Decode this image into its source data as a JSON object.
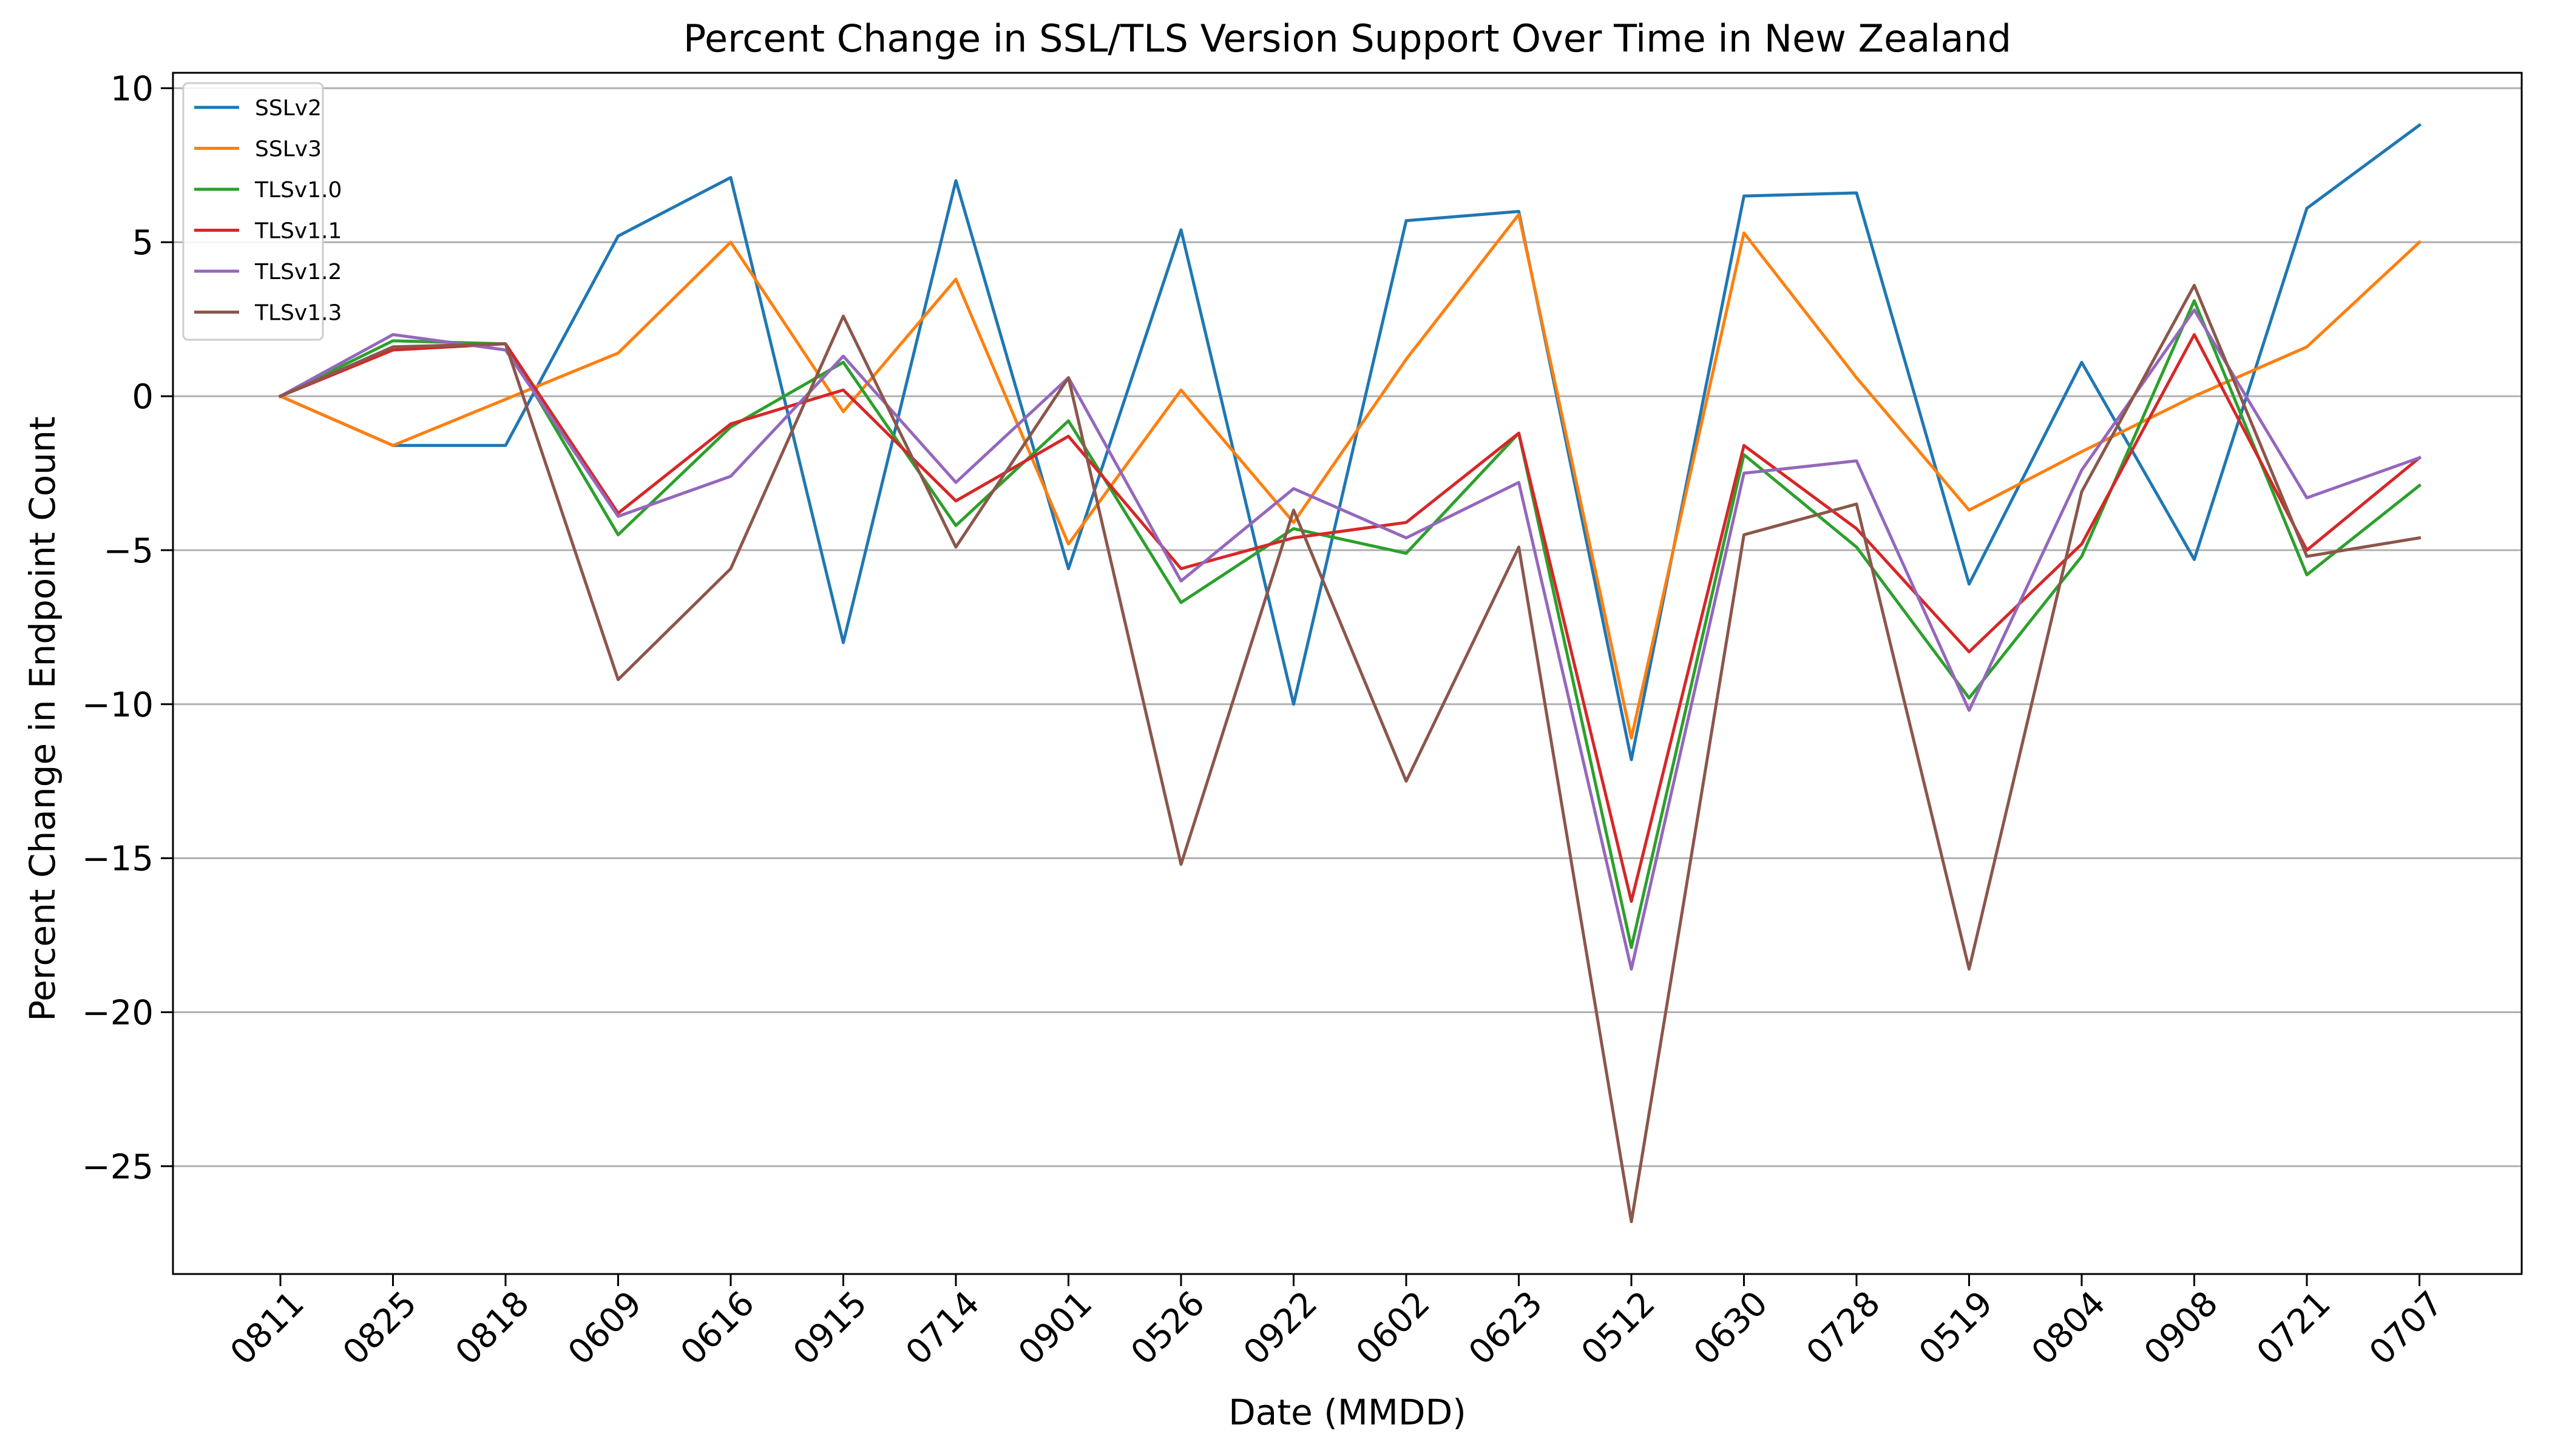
{
  "chart_data": {
    "type": "line",
    "title": "Percent Change in SSL/TLS Version Support Over Time in New Zealand",
    "xlabel": "Date (MMDD)",
    "ylabel": "Percent Change in Endpoint Count",
    "categories": [
      "0811",
      "0825",
      "0818",
      "0609",
      "0616",
      "0915",
      "0714",
      "0901",
      "0526",
      "0922",
      "0602",
      "0623",
      "0512",
      "0630",
      "0728",
      "0519",
      "0804",
      "0908",
      "0721",
      "0707"
    ],
    "ylim": [
      -28.5,
      10.5
    ],
    "yticks": [
      10,
      5,
      0,
      -5,
      -10,
      -15,
      -20,
      -25
    ],
    "ytick_labels": [
      "10",
      "5",
      "0",
      "−5",
      "−10",
      "−15",
      "−20",
      "−25"
    ],
    "grid": {
      "y": true,
      "x": false
    },
    "legend_position": "upper-left",
    "series": [
      {
        "name": "SSLv2",
        "color": "#1f77b4",
        "values": [
          0,
          -1.6,
          -1.6,
          5.2,
          7.1,
          -8.0,
          7.0,
          -5.6,
          5.4,
          -10.0,
          5.7,
          6.0,
          -11.8,
          6.5,
          6.6,
          -6.1,
          1.1,
          -5.3,
          6.1,
          8.8
        ]
      },
      {
        "name": "SSLv3",
        "color": "#ff7f0e",
        "values": [
          0,
          -1.6,
          -0.1,
          1.4,
          5.0,
          -0.5,
          3.8,
          -4.8,
          0.2,
          -4.1,
          1.2,
          5.9,
          -11.1,
          5.3,
          0.6,
          -3.7,
          -1.8,
          0.0,
          1.6,
          5.0
        ]
      },
      {
        "name": "TLSv1.0",
        "color": "#2ca02c",
        "values": [
          0,
          1.8,
          1.7,
          -4.5,
          -1.0,
          1.1,
          -4.2,
          -0.8,
          -6.7,
          -4.3,
          -5.1,
          -1.2,
          -17.9,
          -1.9,
          -4.9,
          -9.8,
          -5.2,
          3.1,
          -5.8,
          -2.9
        ]
      },
      {
        "name": "TLSv1.1",
        "color": "#d62728",
        "values": [
          0,
          1.5,
          1.7,
          -3.8,
          -0.9,
          0.2,
          -3.4,
          -1.3,
          -5.6,
          -4.6,
          -4.1,
          -1.2,
          -16.4,
          -1.6,
          -4.3,
          -8.3,
          -4.8,
          2.0,
          -5.0,
          -2.0
        ]
      },
      {
        "name": "TLSv1.2",
        "color": "#9467bd",
        "values": [
          0,
          2.0,
          1.5,
          -3.9,
          -2.6,
          1.3,
          -2.8,
          0.6,
          -6.0,
          -3.0,
          -4.6,
          -2.8,
          -18.6,
          -2.5,
          -2.1,
          -10.2,
          -2.4,
          2.8,
          -3.3,
          -2.0
        ]
      },
      {
        "name": "TLSv1.3",
        "color": "#8c564b",
        "values": [
          0,
          1.6,
          1.7,
          -9.2,
          -5.6,
          2.6,
          -4.9,
          0.6,
          -15.2,
          -3.7,
          -12.5,
          -4.9,
          -26.8,
          -4.5,
          -3.5,
          -18.6,
          -3.1,
          3.6,
          -5.2,
          -4.6
        ]
      }
    ]
  }
}
